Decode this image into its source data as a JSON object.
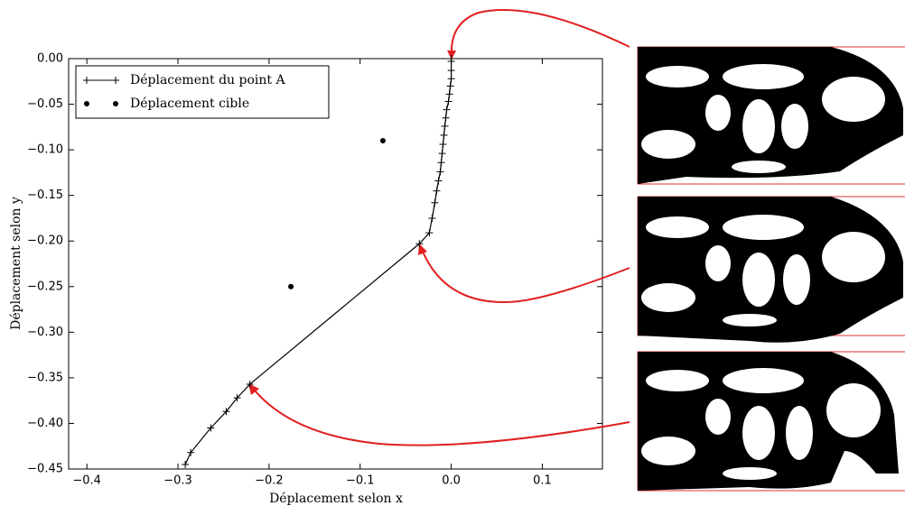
{
  "chart_data": {
    "type": "line",
    "xlabel": "Déplacement selon x",
    "ylabel": "Déplacement selon y",
    "xlim": [
      -0.42,
      0.166
    ],
    "ylim": [
      -0.45,
      0
    ],
    "xticks": [
      {
        "value": -0.4,
        "label": "−0.4"
      },
      {
        "value": -0.3,
        "label": "−0.3"
      },
      {
        "value": -0.2,
        "label": "−0.2"
      },
      {
        "value": -0.1,
        "label": "−0.1"
      },
      {
        "value": 0,
        "label": "0.0"
      },
      0.1
    ],
    "yticks": [
      {
        "value": 0,
        "label": "0.00"
      },
      {
        "value": -0.05,
        "label": "−0.05"
      },
      {
        "value": -0.1,
        "label": "−0.10"
      },
      {
        "value": -0.15,
        "label": "−0.15"
      },
      {
        "value": -0.2,
        "label": "−0.20"
      },
      {
        "value": -0.25,
        "label": "−0.25"
      },
      {
        "value": -0.3,
        "label": "−0.30"
      },
      {
        "value": -0.35,
        "label": "−0.35"
      },
      {
        "value": -0.4,
        "label": "−0.40"
      },
      {
        "value": -0.45,
        "label": "−0.45"
      }
    ],
    "legend": "upper left",
    "series": [
      {
        "name": "Déplacement du point A",
        "color": "#000000",
        "marker": "+",
        "line": true,
        "x": [
          0,
          0,
          0,
          0,
          -0.001,
          -0.002,
          -0.003,
          -0.005,
          -0.006,
          -0.007,
          -0.008,
          -0.009,
          -0.01,
          -0.011,
          -0.012,
          -0.014,
          -0.016,
          -0.018,
          -0.021,
          -0.024,
          -0.035,
          -0.221,
          -0.235,
          -0.247,
          -0.264,
          -0.286,
          -0.292
        ],
        "values": [
          0,
          -0.003,
          -0.013,
          -0.022,
          -0.03,
          -0.039,
          -0.047,
          -0.056,
          -0.065,
          -0.074,
          -0.084,
          -0.094,
          -0.104,
          -0.114,
          -0.124,
          -0.134,
          -0.145,
          -0.158,
          -0.175,
          -0.191,
          -0.203,
          -0.357,
          -0.372,
          -0.387,
          -0.405,
          -0.432,
          -0.445
        ]
      },
      {
        "name": "Déplacement cible",
        "color": "#000000",
        "marker": "o",
        "line": false,
        "x": [
          -0.075,
          -0.176
        ],
        "values": [
          -0.09,
          -0.25
        ]
      }
    ]
  }
}
